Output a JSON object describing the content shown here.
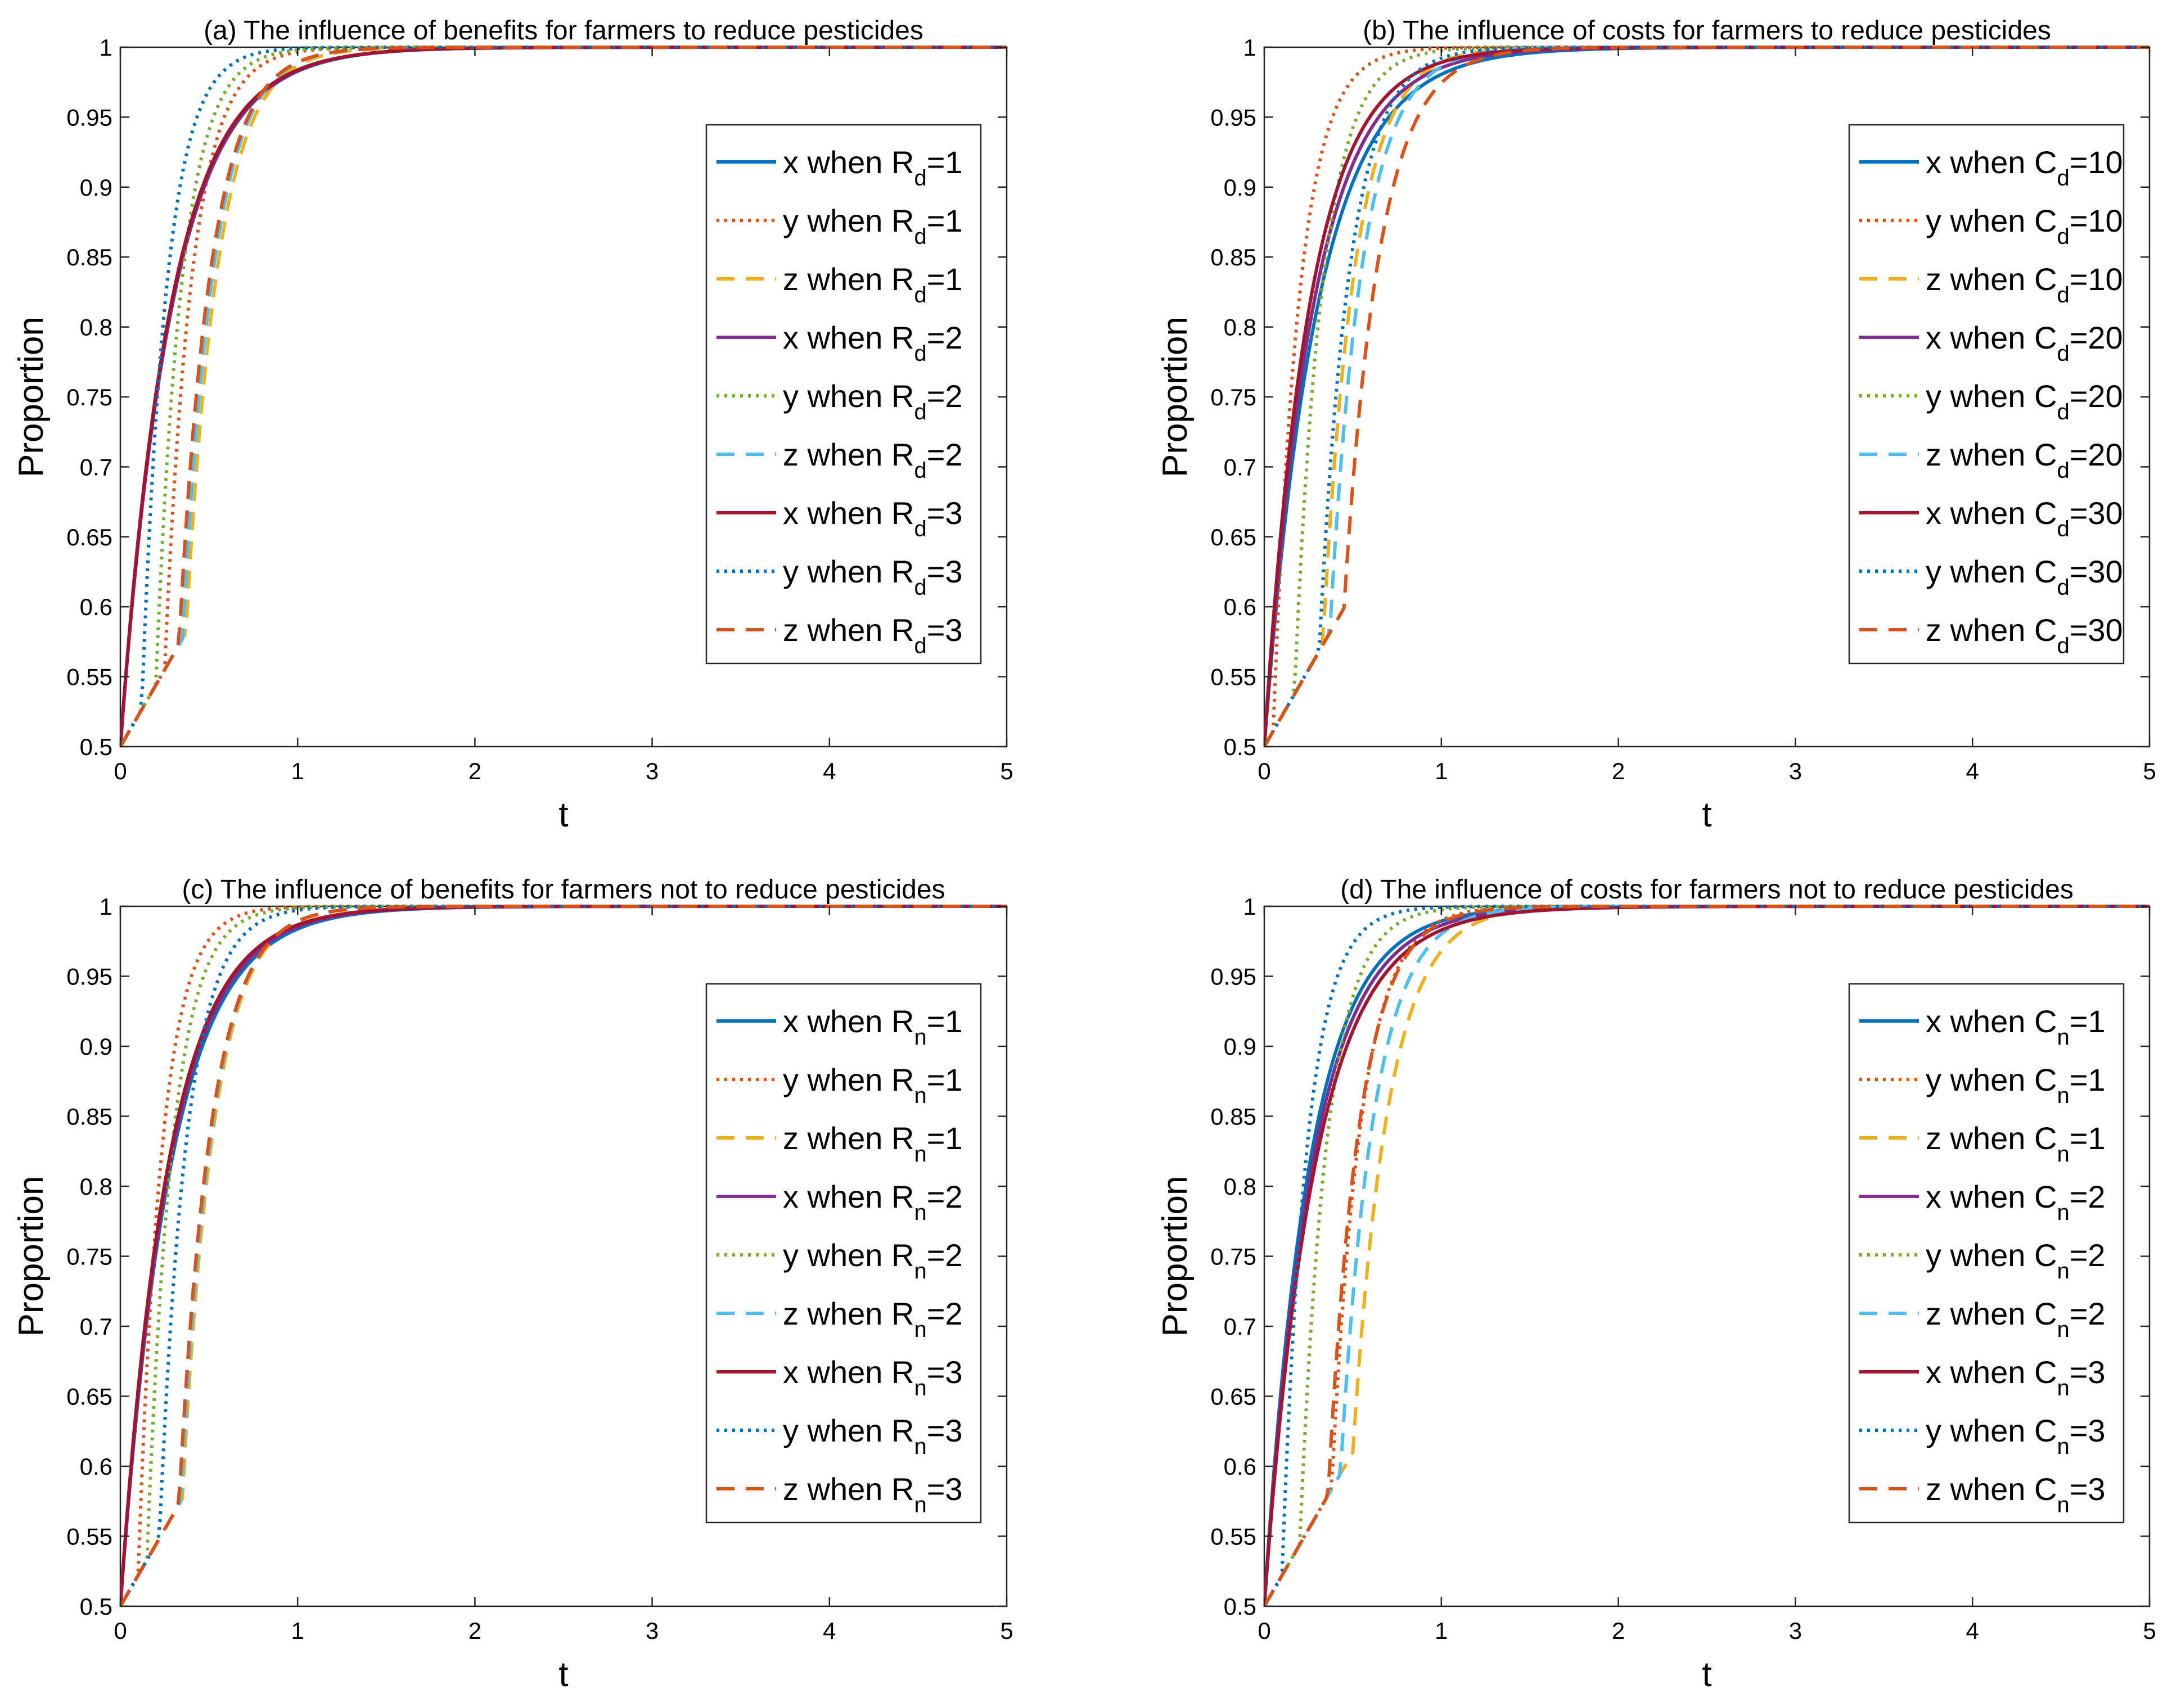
{
  "figure": {
    "colors": {
      "blue": "#0072BD",
      "orange": "#D95319",
      "yellow": "#EDB120",
      "purple": "#7E2F8E",
      "green": "#77AC30",
      "cyan": "#4DBEEE",
      "darkred": "#A2142F"
    }
  },
  "chart_data": [
    {
      "id": "a",
      "type": "line",
      "title": "(a) The influence of benefits for farmers to reduce pesticides",
      "xlabel": "t",
      "ylabel": "Proportion",
      "xlim": [
        0,
        5
      ],
      "ylim": [
        0.5,
        1
      ],
      "xticks": [
        "0",
        "1",
        "2",
        "3",
        "4",
        "5"
      ],
      "yticks": [
        "0.5",
        "0.55",
        "0.6",
        "0.65",
        "0.7",
        "0.75",
        "0.8",
        "0.85",
        "0.9",
        "0.95",
        "1"
      ],
      "legend_position": "right-center",
      "series": [
        {
          "prefix": "x when R",
          "sub": "d",
          "suffix": "=1",
          "color": "#0072BD",
          "dash": "solid",
          "kind": "x",
          "k": 3.5,
          "t0": 0,
          "fc": 0.93,
          "k2": 2.4
        },
        {
          "prefix": "y when R",
          "sub": "d",
          "suffix": "=1",
          "color": "#D95319",
          "dash": "dotted",
          "kind": "yz",
          "k": 6.5,
          "t0": 0.25
        },
        {
          "prefix": "z when R",
          "sub": "d",
          "suffix": "=1",
          "color": "#EDB120",
          "dash": "dashed",
          "kind": "yz",
          "k": 5.5,
          "t0": 0.37
        },
        {
          "prefix": "x when R",
          "sub": "d",
          "suffix": "=2",
          "color": "#7E2F8E",
          "dash": "solid",
          "kind": "x",
          "k": 3.5,
          "t0": 0,
          "fc": 0.93,
          "k2": 2.5
        },
        {
          "prefix": "y when R",
          "sub": "d",
          "suffix": "=2",
          "color": "#77AC30",
          "dash": "dotted",
          "kind": "yz",
          "k": 6.8,
          "t0": 0.2
        },
        {
          "prefix": "z when R",
          "sub": "d",
          "suffix": "=2",
          "color": "#4DBEEE",
          "dash": "dashed",
          "kind": "yz",
          "k": 5.6,
          "t0": 0.35
        },
        {
          "prefix": "x when R",
          "sub": "d",
          "suffix": "=3",
          "color": "#A2142F",
          "dash": "solid",
          "kind": "x",
          "k": 3.6,
          "t0": 0,
          "fc": 0.93,
          "k2": 2.3
        },
        {
          "prefix": "y when R",
          "sub": "d",
          "suffix": "=3",
          "color": "#0072BD",
          "dash": "dotted",
          "kind": "yz",
          "k": 7.2,
          "t0": 0.12
        },
        {
          "prefix": "z when R",
          "sub": "d",
          "suffix": "=3",
          "color": "#D95319",
          "dash": "dashed",
          "kind": "yz",
          "k": 5.5,
          "t0": 0.33
        }
      ]
    },
    {
      "id": "b",
      "type": "line",
      "title": "(b) The influence of costs for farmers to reduce pesticides",
      "xlabel": "t",
      "ylabel": "Proportion",
      "xlim": [
        0,
        5
      ],
      "ylim": [
        0.5,
        1
      ],
      "xticks": [
        "0",
        "1",
        "2",
        "3",
        "4",
        "5"
      ],
      "yticks": [
        "0.5",
        "0.55",
        "0.6",
        "0.65",
        "0.7",
        "0.75",
        "0.8",
        "0.85",
        "0.9",
        "0.95",
        "1"
      ],
      "legend_position": "right-center",
      "series": [
        {
          "prefix": "x when C",
          "sub": "d",
          "suffix": "=10",
          "color": "#0072BD",
          "dash": "solid",
          "kind": "x",
          "k": 3.4,
          "t0": 0,
          "fc": 0.93,
          "k2": 2.2
        },
        {
          "prefix": "y when C",
          "sub": "d",
          "suffix": "=10",
          "color": "#D95319",
          "dash": "dotted",
          "kind": "yz",
          "k": 6.8,
          "t0": 0.05
        },
        {
          "prefix": "z when C",
          "sub": "d",
          "suffix": "=10",
          "color": "#EDB120",
          "dash": "dashed",
          "kind": "yz",
          "k": 5.5,
          "t0": 0.33
        },
        {
          "prefix": "x when C",
          "sub": "d",
          "suffix": "=20",
          "color": "#7E2F8E",
          "dash": "solid",
          "kind": "x",
          "k": 3.7,
          "t0": 0,
          "fc": 0.93,
          "k2": 2.4
        },
        {
          "prefix": "y when C",
          "sub": "d",
          "suffix": "=20",
          "color": "#77AC30",
          "dash": "dotted",
          "kind": "yz",
          "k": 6.3,
          "t0": 0.17
        },
        {
          "prefix": "z when C",
          "sub": "d",
          "suffix": "=20",
          "color": "#4DBEEE",
          "dash": "dashed",
          "kind": "yz",
          "k": 5.4,
          "t0": 0.37
        },
        {
          "prefix": "x when C",
          "sub": "d",
          "suffix": "=30",
          "color": "#A2142F",
          "dash": "solid",
          "kind": "x",
          "k": 4.0,
          "t0": 0,
          "fc": 0.93,
          "k2": 2.7
        },
        {
          "prefix": "y when C",
          "sub": "d",
          "suffix": "=30",
          "color": "#0072BD",
          "dash": "dotted",
          "kind": "yz",
          "k": 5.8,
          "t0": 0.31
        },
        {
          "prefix": "z when C",
          "sub": "d",
          "suffix": "=30",
          "color": "#D95319",
          "dash": "dashed",
          "kind": "yz",
          "k": 5.0,
          "t0": 0.45
        }
      ]
    },
    {
      "id": "c",
      "type": "line",
      "title": "(c) The influence of benefits for farmers not to reduce pesticides",
      "xlabel": "t",
      "ylabel": "Proportion",
      "xlim": [
        0,
        5
      ],
      "ylim": [
        0.5,
        1
      ],
      "xticks": [
        "0",
        "1",
        "2",
        "3",
        "4",
        "5"
      ],
      "yticks": [
        "0.5",
        "0.55",
        "0.6",
        "0.65",
        "0.7",
        "0.75",
        "0.8",
        "0.85",
        "0.9",
        "0.95",
        "1"
      ],
      "legend_position": "right-center",
      "series": [
        {
          "prefix": "x when R",
          "sub": "n",
          "suffix": "=1",
          "color": "#0072BD",
          "dash": "solid",
          "kind": "x",
          "k": 3.6,
          "t0": 0,
          "fc": 0.93,
          "k2": 2.3
        },
        {
          "prefix": "y when R",
          "sub": "n",
          "suffix": "=1",
          "color": "#D95319",
          "dash": "dotted",
          "kind": "yz",
          "k": 7.5,
          "t0": 0.1
        },
        {
          "prefix": "z when R",
          "sub": "n",
          "suffix": "=1",
          "color": "#EDB120",
          "dash": "dashed",
          "kind": "yz",
          "k": 5.6,
          "t0": 0.35
        },
        {
          "prefix": "x when R",
          "sub": "n",
          "suffix": "=2",
          "color": "#7E2F8E",
          "dash": "solid",
          "kind": "x",
          "k": 3.7,
          "t0": 0,
          "fc": 0.93,
          "k2": 2.4
        },
        {
          "prefix": "y when R",
          "sub": "n",
          "suffix": "=2",
          "color": "#77AC30",
          "dash": "dotted",
          "kind": "yz",
          "k": 7.0,
          "t0": 0.15
        },
        {
          "prefix": "z when R",
          "sub": "n",
          "suffix": "=2",
          "color": "#4DBEEE",
          "dash": "dashed",
          "kind": "yz",
          "k": 5.6,
          "t0": 0.34
        },
        {
          "prefix": "x when R",
          "sub": "n",
          "suffix": "=3",
          "color": "#A2142F",
          "dash": "solid",
          "kind": "x",
          "k": 3.8,
          "t0": 0,
          "fc": 0.93,
          "k2": 2.5
        },
        {
          "prefix": "y when R",
          "sub": "n",
          "suffix": "=3",
          "color": "#0072BD",
          "dash": "dotted",
          "kind": "yz",
          "k": 6.5,
          "t0": 0.22
        },
        {
          "prefix": "z when R",
          "sub": "n",
          "suffix": "=3",
          "color": "#D95319",
          "dash": "dashed",
          "kind": "yz",
          "k": 5.5,
          "t0": 0.33
        }
      ]
    },
    {
      "id": "d",
      "type": "line",
      "title": "(d) The influence of costs for farmers not to reduce pesticides",
      "xlabel": "t",
      "ylabel": "Proportion",
      "xlim": [
        0,
        5
      ],
      "ylim": [
        0.5,
        1
      ],
      "xticks": [
        "0",
        "1",
        "2",
        "3",
        "4",
        "5"
      ],
      "yticks": [
        "0.5",
        "0.55",
        "0.6",
        "0.65",
        "0.7",
        "0.75",
        "0.8",
        "0.85",
        "0.9",
        "0.95",
        "1"
      ],
      "legend_position": "right-center",
      "series": [
        {
          "prefix": "x when C",
          "sub": "n",
          "suffix": "=1",
          "color": "#0072BD",
          "dash": "solid",
          "kind": "x",
          "k": 4.0,
          "t0": 0,
          "fc": 0.93,
          "k2": 2.8
        },
        {
          "prefix": "y when C",
          "sub": "n",
          "suffix": "=1",
          "color": "#D95319",
          "dash": "dotted",
          "kind": "yz",
          "k": 6.0,
          "t0": 0.38
        },
        {
          "prefix": "z when C",
          "sub": "n",
          "suffix": "=1",
          "color": "#EDB120",
          "dash": "dashed",
          "kind": "yz",
          "k": 5.0,
          "t0": 0.5
        },
        {
          "prefix": "x when C",
          "sub": "n",
          "suffix": "=2",
          "color": "#7E2F8E",
          "dash": "solid",
          "kind": "x",
          "k": 3.8,
          "t0": 0,
          "fc": 0.93,
          "k2": 2.4
        },
        {
          "prefix": "y when C",
          "sub": "n",
          "suffix": "=2",
          "color": "#77AC30",
          "dash": "dotted",
          "kind": "yz",
          "k": 6.5,
          "t0": 0.2
        },
        {
          "prefix": "z when C",
          "sub": "n",
          "suffix": "=2",
          "color": "#4DBEEE",
          "dash": "dashed",
          "kind": "yz",
          "k": 5.3,
          "t0": 0.43
        },
        {
          "prefix": "x when C",
          "sub": "n",
          "suffix": "=3",
          "color": "#A2142F",
          "dash": "solid",
          "kind": "x",
          "k": 3.6,
          "t0": 0,
          "fc": 0.93,
          "k2": 2.1
        },
        {
          "prefix": "y when C",
          "sub": "n",
          "suffix": "=3",
          "color": "#0072BD",
          "dash": "dotted",
          "kind": "yz",
          "k": 7.2,
          "t0": 0.1
        },
        {
          "prefix": "z when C",
          "sub": "n",
          "suffix": "=3",
          "color": "#D95319",
          "dash": "dashed",
          "kind": "yz",
          "k": 5.6,
          "t0": 0.36
        }
      ]
    }
  ]
}
